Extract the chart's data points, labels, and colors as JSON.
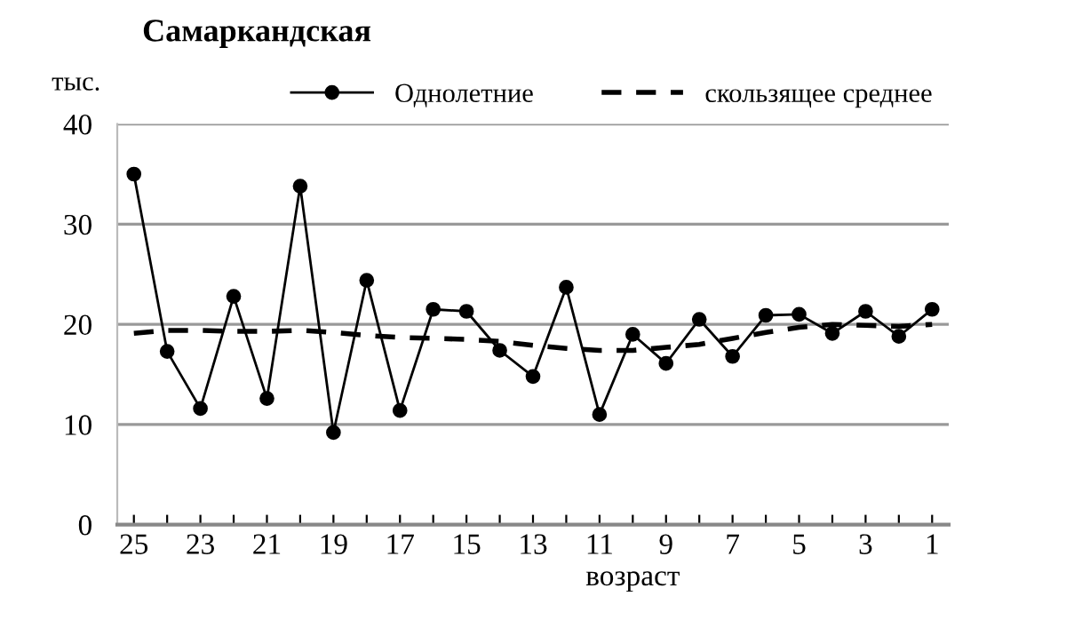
{
  "chart_data": {
    "type": "line",
    "title": "Самаркандская",
    "ylabel": "тыс.",
    "xlabel": "возраст",
    "x": [
      25,
      24,
      23,
      22,
      21,
      20,
      19,
      18,
      17,
      16,
      15,
      14,
      13,
      12,
      11,
      10,
      9,
      8,
      7,
      6,
      5,
      4,
      3,
      2,
      1
    ],
    "series": [
      {
        "name": "Однолетние",
        "color": "#000000",
        "marker": "circle",
        "line_style": "solid",
        "values": [
          35,
          17.3,
          11.6,
          22.8,
          12.6,
          33.8,
          9.2,
          24.4,
          11.4,
          21.5,
          21.3,
          17.4,
          14.8,
          23.7,
          11.0,
          19.0,
          16.1,
          20.5,
          16.8,
          20.9,
          21.0,
          19.1,
          21.3,
          18.8,
          21.5
        ]
      },
      {
        "name": "скользящее среднее",
        "color": "#000000",
        "marker": "none",
        "line_style": "dashed",
        "values": [
          19.1,
          19.4,
          19.4,
          19.3,
          19.3,
          19.4,
          19.2,
          18.9,
          18.7,
          18.6,
          18.5,
          18.3,
          17.9,
          17.6,
          17.4,
          17.4,
          17.7,
          18.0,
          18.6,
          19.2,
          19.7,
          20.0,
          19.9,
          19.8,
          20.0
        ]
      }
    ],
    "xlim": [
      25.5,
      0.5
    ],
    "xticks": [
      25,
      {
        "value": 24,
        "label": null
      },
      23,
      {
        "value": 22,
        "label": null
      },
      21,
      {
        "value": 20,
        "label": null
      },
      19,
      {
        "value": 18,
        "label": null
      },
      17,
      {
        "value": 16,
        "label": null
      },
      15,
      {
        "value": 14,
        "label": null
      },
      13,
      {
        "value": 12,
        "label": null
      },
      11,
      {
        "value": 10,
        "label": null
      },
      9,
      {
        "value": 8,
        "label": null
      },
      7,
      {
        "value": 6,
        "label": null
      },
      5,
      {
        "value": 4,
        "label": null
      },
      3,
      {
        "value": 2,
        "label": null
      },
      1
    ],
    "ylim": [
      0,
      40
    ],
    "yticks": [
      0,
      10,
      20,
      30,
      40
    ],
    "grid": "y",
    "legend": "top right"
  }
}
